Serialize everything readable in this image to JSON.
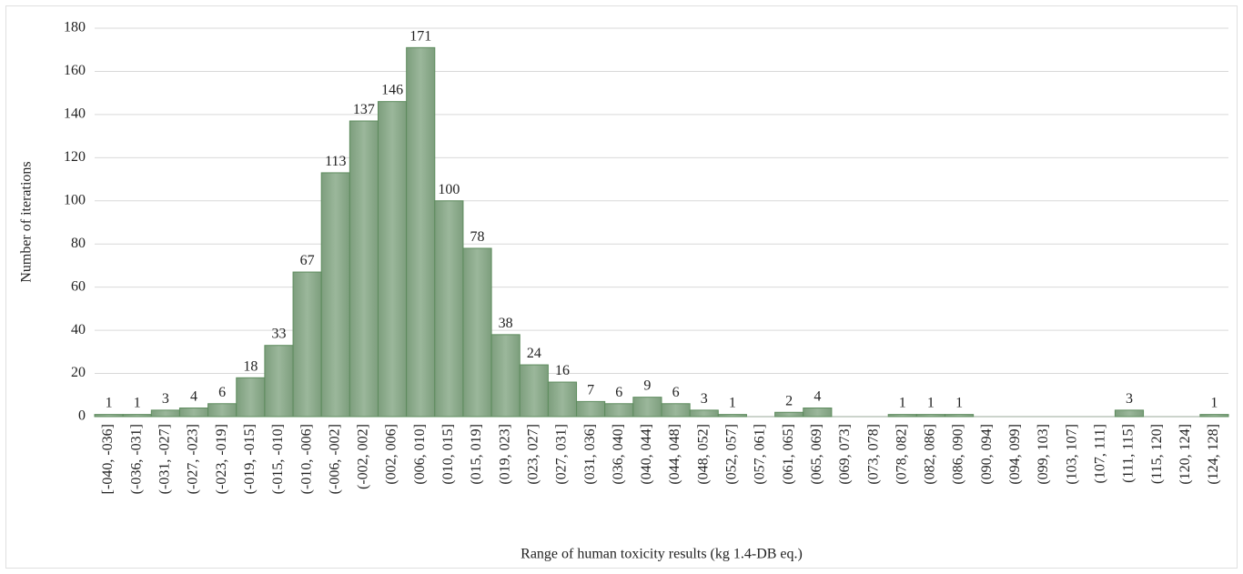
{
  "chart_data": {
    "type": "bar",
    "x_label": "Range of human toxicity results (kg 1.4-DB eq.)",
    "y_label": "Number of iterations",
    "categories": [
      "[-040, -036]",
      "(-036, -031]",
      "(-031, -027]",
      "(-027, -023]",
      "(-023, -019]",
      "(-019, -015]",
      "(-015, -010]",
      "(-010, -006]",
      "(-006, -002]",
      "(-002, 002]",
      "(002, 006]",
      "(006, 010]",
      "(010, 015]",
      "(015, 019]",
      "(019, 023]",
      "(023, 027]",
      "(027, 031]",
      "(031, 036]",
      "(036, 040]",
      "(040, 044]",
      "(044, 048]",
      "(048, 052]",
      "(052, 057]",
      "(057, 061]",
      "(061, 065]",
      "(065, 069]",
      "(069, 073]",
      "(073, 078]",
      "(078, 082]",
      "(082, 086]",
      "(086, 090]",
      "(090, 094]",
      "(094, 099]",
      "(099, 103]",
      "(103, 107]",
      "(107, 111]",
      "(111, 115]",
      "(115, 120]",
      "(120, 124]",
      "(124, 128]"
    ],
    "values": [
      1,
      1,
      3,
      4,
      6,
      18,
      33,
      67,
      113,
      137,
      146,
      171,
      100,
      78,
      38,
      24,
      16,
      7,
      6,
      9,
      6,
      3,
      1,
      0,
      2,
      4,
      0,
      0,
      1,
      1,
      1,
      0,
      0,
      0,
      0,
      0,
      3,
      0,
      0,
      1
    ],
    "color": "#8aa98a",
    "edge_color": "#5e8c5e",
    "ylim": [
      0,
      180
    ],
    "yticks": [
      0,
      20,
      40,
      60,
      80,
      100,
      120,
      140,
      160,
      180
    ],
    "grid": true
  }
}
